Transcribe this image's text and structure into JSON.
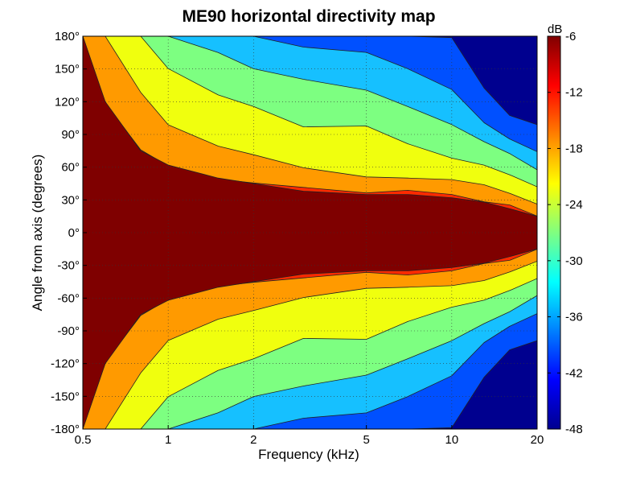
{
  "chart_data": {
    "type": "heatmap",
    "title": "ME90 horizontal directivity map",
    "xlabel": "Frequency (kHz)",
    "ylabel": "Angle from axis (degrees)",
    "x_scale": "log",
    "xlim": [
      0.5,
      20
    ],
    "ylim": [
      -180,
      180
    ],
    "x_ticks": [
      0.5,
      1,
      2,
      5,
      10,
      20
    ],
    "x_tick_labels": [
      "0.5",
      "1",
      "2",
      "5",
      "10",
      "20"
    ],
    "y_ticks": [
      180,
      150,
      120,
      90,
      60,
      30,
      0,
      -30,
      -60,
      -90,
      -120,
      -150,
      -180
    ],
    "y_tick_labels": [
      "180°",
      "150°",
      "120°",
      "90°",
      "60°",
      "30°",
      "0°",
      "-30°",
      "-60°",
      "-90°",
      "-120°",
      "-150°",
      "-180°"
    ],
    "grid": true,
    "colorbar": {
      "label": "dB",
      "range": [
        -48,
        -6
      ],
      "ticks": [
        -6,
        -12,
        -18,
        -24,
        -30,
        -36,
        -42,
        -48
      ],
      "tick_labels": [
        "-6",
        "-12",
        "-18",
        "-24",
        "-30",
        "-36",
        "-42",
        "-48"
      ]
    },
    "contour_levels_db": [
      -6,
      -12,
      -18,
      -24,
      -30,
      -36,
      -42,
      -48
    ],
    "contour_boundaries": {
      "frequency_khz": [
        0.5,
        0.6,
        0.8,
        1,
        1.5,
        2,
        3,
        5,
        7,
        10,
        13,
        16,
        20
      ],
      "angle_deg_at_minus6dB": [
        180,
        120,
        75,
        62,
        50,
        45,
        38,
        35,
        35,
        32,
        28,
        22,
        15
      ],
      "angle_deg_at_minus12dB": [
        180,
        180,
        130,
        100,
        80,
        70,
        60,
        55,
        50,
        48,
        42,
        35,
        30
      ],
      "angle_deg_at_minus18dB": [
        180,
        180,
        180,
        150,
        125,
        115,
        100,
        95,
        85,
        70,
        60,
        52,
        45
      ],
      "angle_deg_at_minus24dB": [
        180,
        180,
        180,
        180,
        165,
        150,
        140,
        130,
        115,
        100,
        80,
        70,
        60
      ],
      "angle_deg_at_minus30dB": [
        180,
        180,
        180,
        180,
        180,
        180,
        170,
        165,
        150,
        135,
        100,
        85,
        75
      ],
      "angle_deg_at_minus36dB": [
        180,
        180,
        180,
        180,
        180,
        180,
        180,
        180,
        180,
        175,
        130,
        110,
        95
      ]
    },
    "level_colors": [
      "#7f0000",
      "#ff2a00",
      "#ff9a00",
      "#f0ff0e",
      "#7dff81",
      "#16c0ff",
      "#0050ff",
      "#00008f"
    ]
  }
}
